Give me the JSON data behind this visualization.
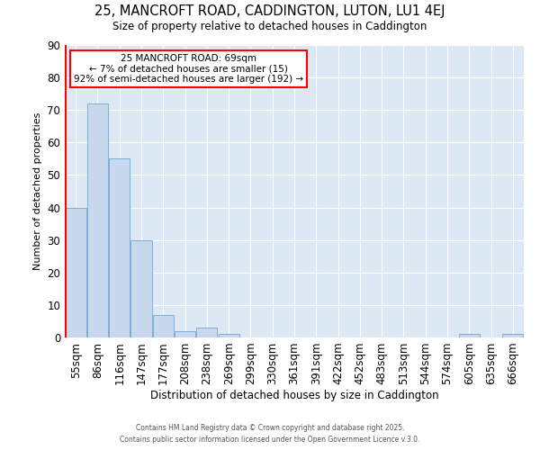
{
  "title1": "25, MANCROFT ROAD, CADDINGTON, LUTON, LU1 4EJ",
  "title2": "Size of property relative to detached houses in Caddington",
  "xlabel": "Distribution of detached houses by size in Caddington",
  "ylabel": "Number of detached properties",
  "categories": [
    "55sqm",
    "86sqm",
    "116sqm",
    "147sqm",
    "177sqm",
    "208sqm",
    "238sqm",
    "269sqm",
    "299sqm",
    "330sqm",
    "361sqm",
    "391sqm",
    "422sqm",
    "452sqm",
    "483sqm",
    "513sqm",
    "544sqm",
    "574sqm",
    "605sqm",
    "635sqm",
    "666sqm"
  ],
  "values": [
    40,
    72,
    55,
    30,
    7,
    2,
    3,
    1,
    0,
    0,
    0,
    0,
    0,
    0,
    0,
    0,
    0,
    0,
    1,
    0,
    1
  ],
  "bar_color": "#c9d9ed",
  "bar_edgecolor": "#7bafd4",
  "ylim": [
    0,
    90
  ],
  "yticks": [
    0,
    10,
    20,
    30,
    40,
    50,
    60,
    70,
    80,
    90
  ],
  "annotation_line1": "25 MANCROFT ROAD: 69sqm",
  "annotation_line2": "← 7% of detached houses are smaller (15)",
  "annotation_line3": "92% of semi-detached houses are larger (192) →",
  "footer1": "Contains HM Land Registry data © Crown copyright and database right 2025.",
  "footer2": "Contains public sector information licensed under the Open Government Licence v.3.0.",
  "fig_bg_color": "#ffffff",
  "plot_bg_color": "#dde8f5"
}
